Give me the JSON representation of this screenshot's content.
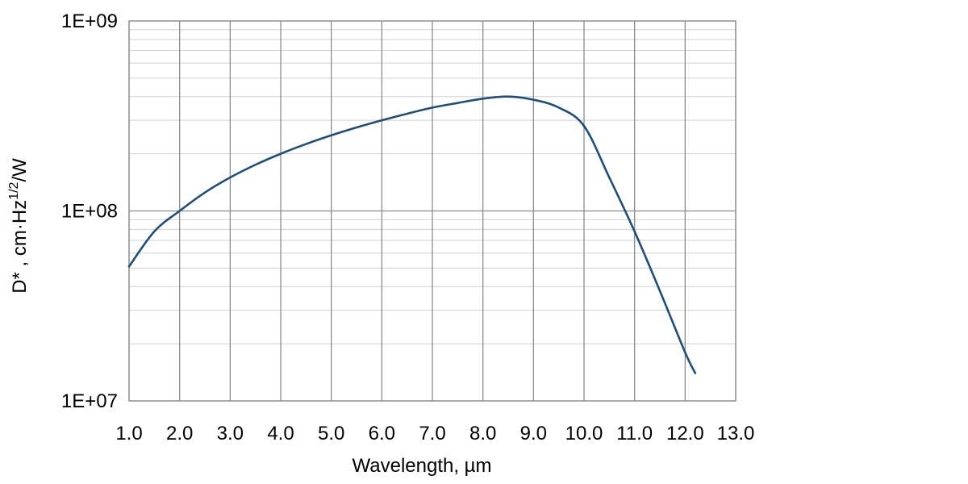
{
  "chart_data": {
    "type": "line",
    "title": "",
    "xlabel": "Wavelength, µm",
    "ylabel": {
      "base": "D* , cm·Hz",
      "superscript": "1/2",
      "suffix": "/W"
    },
    "xlim": [
      1.0,
      13.0
    ],
    "ylim": [
      10000000,
      1000000000
    ],
    "yscale": "log",
    "grid": true,
    "legend": "none",
    "x_tick_labels": [
      "1.0",
      "2.0",
      "3.0",
      "4.0",
      "5.0",
      "6.0",
      "7.0",
      "8.0",
      "9.0",
      "10.0",
      "11.0",
      "12.0",
      "13.0"
    ],
    "y_tick_labels": [
      "1E+07",
      "1E+08",
      "1E+09"
    ],
    "line_color": "#1f4e79",
    "series": [
      {
        "x": [
          1.0,
          1.5,
          2.0,
          2.5,
          3.0,
          3.5,
          4.0,
          4.5,
          5.0,
          5.5,
          6.0,
          6.5,
          7.0,
          7.5,
          8.0,
          8.5,
          9.0,
          9.5,
          10.0,
          10.5,
          11.0,
          11.5,
          12.0,
          12.2
        ],
        "y": [
          51000000,
          78000000,
          100000000,
          125000000,
          150000000,
          175000000,
          200000000,
          225000000,
          250000000,
          275000000,
          300000000,
          325000000,
          350000000,
          370000000,
          390000000,
          400000000,
          385000000,
          350000000,
          280000000,
          150000000,
          78000000,
          38000000,
          18000000,
          14000000
        ]
      }
    ]
  }
}
